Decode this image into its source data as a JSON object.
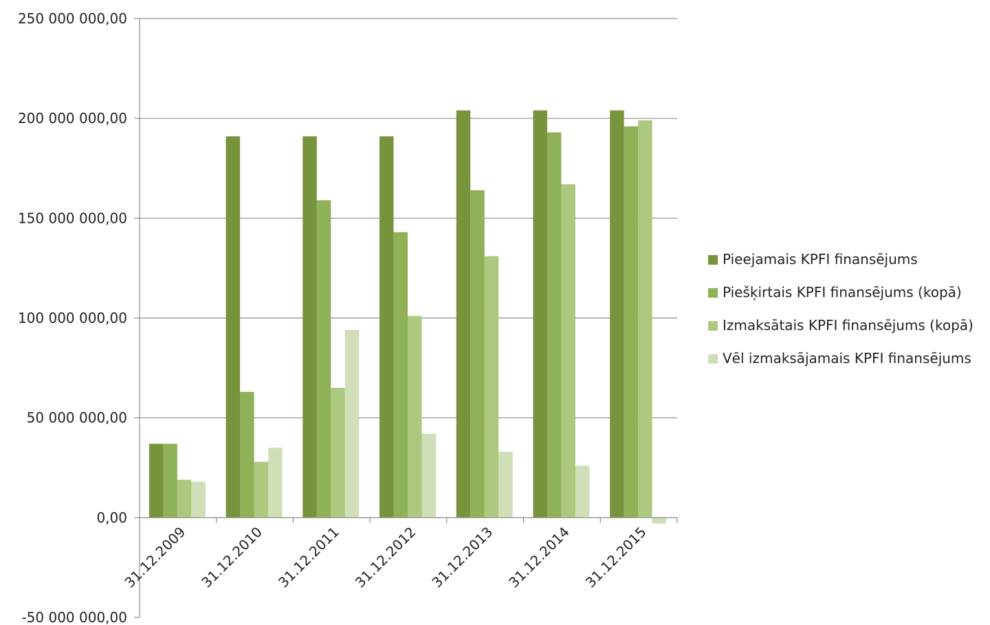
{
  "chart_data": {
    "type": "bar",
    "title": "",
    "xlabel": "",
    "ylabel": "",
    "ylim": [
      -50000000,
      250000000
    ],
    "yticks": [
      250000000,
      200000000,
      150000000,
      100000000,
      50000000,
      0,
      -50000000
    ],
    "ytick_labels": [
      "250 000 000,00",
      "200 000 000,00",
      "150 000 000,00",
      "100 000 000,00",
      "50 000 000,00",
      "0,00",
      "-50 000 000,00"
    ],
    "grid": true,
    "legend_position": "right",
    "categories": [
      "31.12.2009",
      "31.12.2010",
      "31.12.2011",
      "31.12.2012",
      "31.12.2013",
      "31.12.2014",
      "31.12.2015"
    ],
    "series": [
      {
        "name": "Pieejamais KPFI finansējums",
        "color": "#77933C",
        "values": [
          37000000,
          191000000,
          191000000,
          191000000,
          204000000,
          204000000,
          204000000
        ]
      },
      {
        "name": "Piešķirtais KPFI finansējums (kopā)",
        "color": "#8FB157",
        "values": [
          37000000,
          63000000,
          159000000,
          143000000,
          164000000,
          193000000,
          196000000
        ]
      },
      {
        "name": "Izmaksātais KPFI finansējums (kopā)",
        "color": "#ACC97F",
        "values": [
          19000000,
          28000000,
          65000000,
          101000000,
          131000000,
          167000000,
          199000000
        ]
      },
      {
        "name": "Vēl izmaksājamais KPFI finansējums",
        "color": "#D0DFB7",
        "values": [
          18000000,
          35000000,
          94000000,
          42000000,
          33000000,
          26000000,
          -3000000
        ]
      }
    ]
  }
}
